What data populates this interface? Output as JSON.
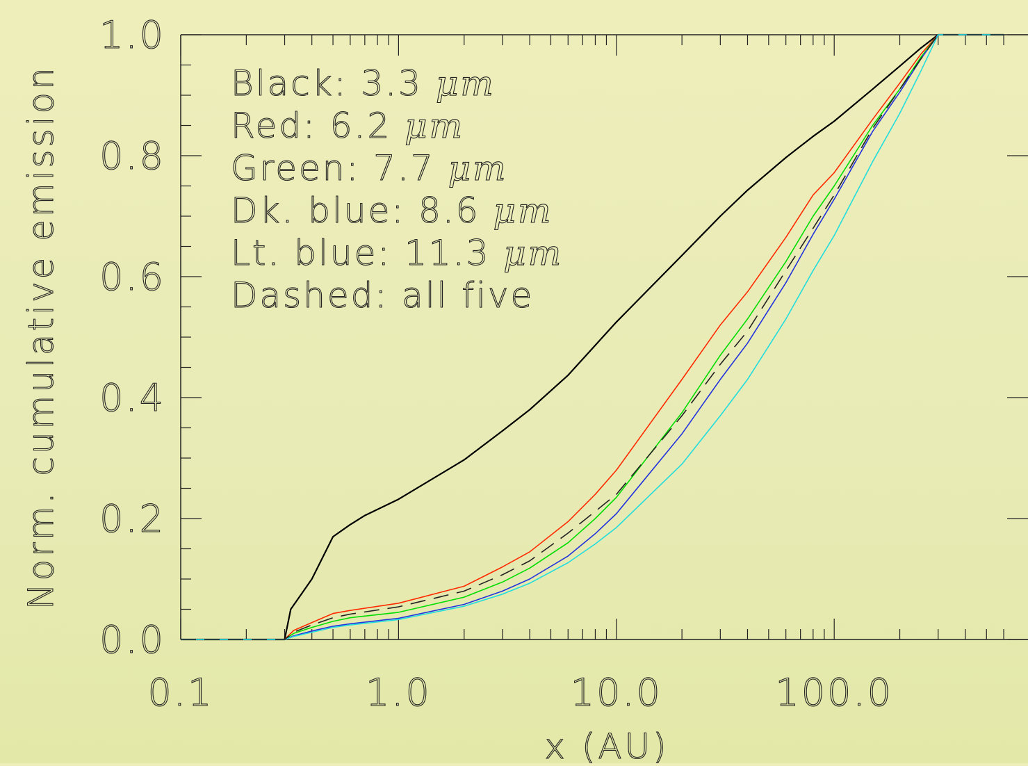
{
  "chart_data": {
    "type": "line",
    "xlabel": "x (AU)",
    "ylabel": "Norm. cumulative emission",
    "xscale": "log",
    "xlim": [
      0.1,
      600
    ],
    "ylim": [
      0.0,
      1.0
    ],
    "xticks": [
      {
        "value": 0.1,
        "label": "0.1"
      },
      {
        "value": 1,
        "label": "1.0"
      },
      {
        "value": 10,
        "label": "10.0"
      },
      {
        "value": 100,
        "label": "100.0"
      }
    ],
    "yticks": [
      {
        "value": 0.0,
        "label": "0.0"
      },
      {
        "value": 0.2,
        "label": "0.2"
      },
      {
        "value": 0.4,
        "label": "0.4"
      },
      {
        "value": 0.6,
        "label": "0.6"
      },
      {
        "value": 0.8,
        "label": "0.8"
      },
      {
        "value": 1.0,
        "label": "1.0"
      }
    ],
    "legend_placement": "top-left",
    "legend": [
      {
        "prefix": "Black: 3.3 ",
        "unit": "μm"
      },
      {
        "prefix": "Red: 6.2 ",
        "unit": "μm"
      },
      {
        "prefix": "Green: 7.7 ",
        "unit": "μm"
      },
      {
        "prefix": "Dk. blue: 8.6 ",
        "unit": "μm"
      },
      {
        "prefix": "Lt. blue: 11.3 ",
        "unit": "μm"
      },
      {
        "prefix": "Dashed: all five",
        "unit": ""
      }
    ],
    "series": [
      {
        "color": "#000000",
        "dash": false,
        "width": 2.2,
        "x": [
          0.1,
          0.3,
          0.32,
          0.35,
          0.4,
          0.5,
          0.6,
          0.7,
          1,
          2,
          3,
          4,
          6,
          10,
          20,
          30,
          40,
          60,
          80,
          100,
          150,
          200,
          250,
          300,
          400,
          600
        ],
        "y": [
          0.0,
          0.0,
          0.05,
          0.07,
          0.1,
          0.17,
          0.19,
          0.205,
          0.232,
          0.297,
          0.345,
          0.38,
          0.437,
          0.525,
          0.635,
          0.7,
          0.743,
          0.797,
          0.832,
          0.857,
          0.91,
          0.948,
          0.978,
          1.0,
          1.0,
          1.0
        ]
      },
      {
        "color": "#ff2a00",
        "dash": false,
        "width": 1.6,
        "x": [
          0.1,
          0.3,
          0.33,
          0.4,
          0.5,
          0.6,
          1,
          2,
          3,
          4,
          6,
          8,
          10,
          20,
          30,
          40,
          60,
          80,
          100,
          150,
          200,
          250,
          300,
          400,
          600
        ],
        "y": [
          0.0,
          0.0,
          0.015,
          0.028,
          0.043,
          0.048,
          0.06,
          0.088,
          0.12,
          0.145,
          0.195,
          0.24,
          0.28,
          0.43,
          0.52,
          0.575,
          0.665,
          0.735,
          0.772,
          0.86,
          0.92,
          0.968,
          1.0,
          1.0,
          1.0
        ]
      },
      {
        "color": "#00dd00",
        "dash": false,
        "width": 1.6,
        "x": [
          0.1,
          0.3,
          0.33,
          0.4,
          0.5,
          0.6,
          1,
          2,
          3,
          4,
          6,
          8,
          10,
          20,
          30,
          40,
          60,
          80,
          100,
          150,
          200,
          250,
          300,
          400,
          600
        ],
        "y": [
          0.0,
          0.0,
          0.01,
          0.02,
          0.03,
          0.036,
          0.045,
          0.07,
          0.095,
          0.118,
          0.16,
          0.2,
          0.235,
          0.375,
          0.47,
          0.53,
          0.625,
          0.7,
          0.75,
          0.85,
          0.91,
          0.963,
          1.0,
          1.0,
          1.0
        ]
      },
      {
        "color": "#2233dd",
        "dash": false,
        "width": 1.6,
        "x": [
          0.1,
          0.3,
          0.33,
          0.4,
          0.5,
          0.6,
          1,
          2,
          3,
          4,
          6,
          8,
          10,
          20,
          30,
          40,
          60,
          80,
          100,
          150,
          200,
          250,
          300,
          400,
          600
        ],
        "y": [
          0.0,
          0.0,
          0.006,
          0.014,
          0.022,
          0.026,
          0.035,
          0.058,
          0.08,
          0.1,
          0.138,
          0.175,
          0.208,
          0.34,
          0.43,
          0.49,
          0.59,
          0.67,
          0.728,
          0.84,
          0.905,
          0.96,
          1.0,
          1.0,
          1.0
        ]
      },
      {
        "color": "#22dddd",
        "dash": false,
        "width": 1.6,
        "x": [
          0.1,
          0.3,
          0.33,
          0.4,
          0.5,
          0.6,
          1,
          2,
          3,
          4,
          6,
          8,
          10,
          20,
          30,
          40,
          60,
          80,
          100,
          150,
          200,
          250,
          300,
          400,
          600
        ],
        "y": [
          0.0,
          0.0,
          0.005,
          0.012,
          0.02,
          0.024,
          0.033,
          0.055,
          0.075,
          0.093,
          0.127,
          0.158,
          0.185,
          0.29,
          0.37,
          0.43,
          0.53,
          0.61,
          0.668,
          0.79,
          0.87,
          0.94,
          1.0,
          1.0,
          1.0
        ]
      },
      {
        "color": "#222222",
        "dash": true,
        "width": 1.6,
        "x": [
          0.1,
          0.3,
          0.33,
          0.4,
          0.5,
          0.6,
          1,
          2,
          3,
          4,
          6,
          8,
          10,
          20,
          30,
          40,
          60,
          80,
          100,
          150,
          200,
          250,
          300,
          400,
          600
        ],
        "y": [
          0.0,
          0.0,
          0.012,
          0.024,
          0.036,
          0.042,
          0.054,
          0.08,
          0.107,
          0.13,
          0.176,
          0.212,
          0.24,
          0.37,
          0.455,
          0.51,
          0.61,
          0.68,
          0.735,
          0.845,
          0.91,
          0.96,
          1.0,
          1.0,
          1.0
        ]
      }
    ]
  }
}
